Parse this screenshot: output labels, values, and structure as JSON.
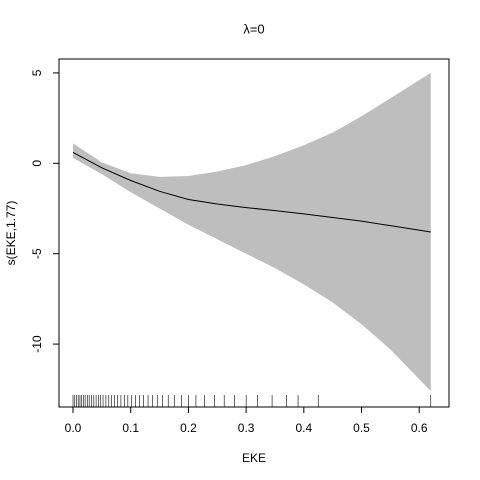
{
  "chart_data": {
    "type": "line",
    "title": "λ=0",
    "x_label": "EKE",
    "y_label": "s(EKE,1.77)",
    "x": [
      0,
      0.05,
      0.1,
      0.15,
      0.2,
      0.25,
      0.3,
      0.35,
      0.4,
      0.45,
      0.5,
      0.55,
      0.62
    ],
    "values": [
      0.6,
      -0.25,
      -0.95,
      -1.55,
      -2.0,
      -2.25,
      -2.45,
      -2.62,
      -2.8,
      -3.0,
      -3.2,
      -3.45,
      -3.8
    ],
    "upper": [
      1.1,
      0.05,
      -0.55,
      -0.75,
      -0.7,
      -0.45,
      -0.1,
      0.4,
      1.0,
      1.7,
      2.6,
      3.6,
      5.0
    ],
    "lower": [
      0.3,
      -0.6,
      -1.6,
      -2.5,
      -3.4,
      -4.2,
      -5.0,
      -5.8,
      -6.7,
      -7.7,
      -8.9,
      -10.3,
      -12.6
    ],
    "color": "#000000",
    "band_color": "#bebebe",
    "rug": [
      0.0,
      0.003,
      0.006,
      0.009,
      0.012,
      0.015,
      0.018,
      0.021,
      0.025,
      0.028,
      0.032,
      0.036,
      0.04,
      0.044,
      0.048,
      0.052,
      0.057,
      0.062,
      0.067,
      0.072,
      0.077,
      0.083,
      0.089,
      0.095,
      0.101,
      0.108,
      0.115,
      0.122,
      0.13,
      0.138,
      0.146,
      0.155,
      0.165,
      0.176,
      0.188,
      0.2,
      0.213,
      0.228,
      0.245,
      0.262,
      0.28,
      0.3,
      0.32,
      0.345,
      0.37,
      0.39,
      0.425,
      0.62
    ],
    "xlim": [
      -0.0243,
      0.6516
    ],
    "ylim": [
      -13.48,
      5.77
    ],
    "xticks": [
      {
        "value": 0,
        "label": "0.0"
      },
      0.1,
      0.2,
      0.3,
      0.4,
      0.5,
      0.6
    ],
    "yticks": [
      5,
      0,
      -5,
      -10
    ]
  }
}
